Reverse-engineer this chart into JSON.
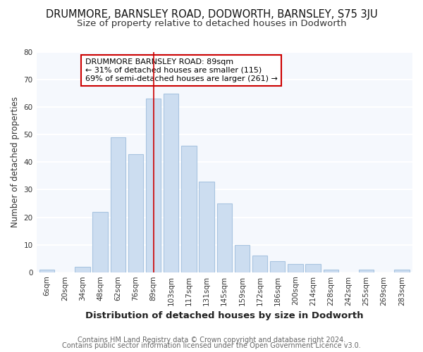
{
  "title": "DRUMMORE, BARNSLEY ROAD, DODWORTH, BARNSLEY, S75 3JU",
  "subtitle": "Size of property relative to detached houses in Dodworth",
  "xlabel": "Distribution of detached houses by size in Dodworth",
  "ylabel": "Number of detached properties",
  "bar_labels": [
    "6sqm",
    "20sqm",
    "34sqm",
    "48sqm",
    "62sqm",
    "76sqm",
    "89sqm",
    "103sqm",
    "117sqm",
    "131sqm",
    "145sqm",
    "159sqm",
    "172sqm",
    "186sqm",
    "200sqm",
    "214sqm",
    "228sqm",
    "242sqm",
    "255sqm",
    "269sqm",
    "283sqm"
  ],
  "bar_values": [
    1,
    0,
    2,
    22,
    49,
    43,
    63,
    65,
    46,
    33,
    25,
    10,
    6,
    4,
    3,
    3,
    1,
    0,
    1,
    0,
    1
  ],
  "bar_color": "#ccddf0",
  "bar_edge_color": "#a8c4e0",
  "highlight_bar_index": 6,
  "highlight_line_color": "#cc0000",
  "ylim": [
    0,
    80
  ],
  "yticks": [
    0,
    10,
    20,
    30,
    40,
    50,
    60,
    70,
    80
  ],
  "annotation_box_text": "DRUMMORE BARNSLEY ROAD: 89sqm\n← 31% of detached houses are smaller (115)\n69% of semi-detached houses are larger (261) →",
  "annotation_box_edge_color": "#cc0000",
  "annotation_box_facecolor": "#ffffff",
  "footer1": "Contains HM Land Registry data © Crown copyright and database right 2024.",
  "footer2": "Contains public sector information licensed under the Open Government Licence v3.0.",
  "background_color": "#ffffff",
  "plot_bg_color": "#f5f8fd",
  "grid_color": "#ffffff",
  "title_fontsize": 10.5,
  "subtitle_fontsize": 9.5,
  "xlabel_fontsize": 9.5,
  "ylabel_fontsize": 8.5,
  "tick_fontsize": 7.5,
  "annotation_fontsize": 8,
  "footer_fontsize": 7
}
